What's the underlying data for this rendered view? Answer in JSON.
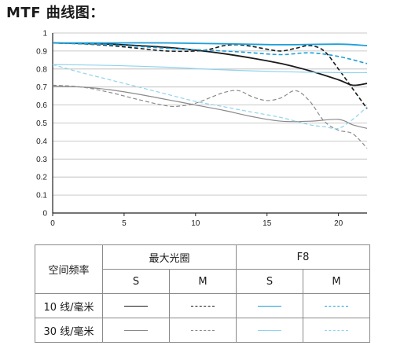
{
  "title": "MTF 曲线图：",
  "colors": {
    "max_aperture": "#1a1a1a",
    "max_aperture_30": "#8a8a8a",
    "f8": "#1e9fd8",
    "f8_30": "#8fd3ee",
    "axis": "#222222",
    "grid": "#b8b8b8"
  },
  "chart_data": {
    "type": "line",
    "xlim": [
      0,
      22
    ],
    "ylim": [
      0,
      1
    ],
    "x_ticks": [
      "0",
      "5",
      "10",
      "15",
      "20"
    ],
    "x_tick_values": [
      0,
      5,
      10,
      15,
      20
    ],
    "y_ticks": [
      "0",
      "0.1",
      "0.2",
      "0.3",
      "0.4",
      "0.5",
      "0.6",
      "0.7",
      "0.8",
      "0.9",
      "1"
    ],
    "y_tick_values": [
      0,
      0.1,
      0.2,
      0.3,
      0.4,
      0.5,
      0.6,
      0.7,
      0.8,
      0.9,
      1
    ],
    "grid": true,
    "series": [
      {
        "key": "max_10_s",
        "color": "#1a1a1a",
        "dash": "solid",
        "width": 1.8,
        "x": [
          0,
          2,
          4,
          6,
          8,
          10,
          12,
          14,
          16,
          18,
          20,
          21,
          22
        ],
        "y": [
          0.945,
          0.942,
          0.938,
          0.93,
          0.92,
          0.905,
          0.885,
          0.86,
          0.83,
          0.79,
          0.74,
          0.71,
          0.72
        ]
      },
      {
        "key": "max_10_m",
        "color": "#1a1a1a",
        "dash": "dashed",
        "width": 1.6,
        "x": [
          0,
          2,
          4,
          6,
          8,
          10,
          11,
          12,
          13,
          14,
          15,
          16,
          17,
          18,
          19,
          20,
          21,
          22
        ],
        "y": [
          0.945,
          0.94,
          0.93,
          0.915,
          0.9,
          0.9,
          0.91,
          0.93,
          0.935,
          0.925,
          0.91,
          0.9,
          0.915,
          0.93,
          0.9,
          0.8,
          0.69,
          0.58
        ]
      },
      {
        "key": "f8_10_s",
        "color": "#1e9fd8",
        "dash": "solid",
        "width": 1.8,
        "x": [
          0,
          4,
          8,
          12,
          16,
          20,
          22
        ],
        "y": [
          0.945,
          0.945,
          0.945,
          0.94,
          0.935,
          0.938,
          0.93
        ]
      },
      {
        "key": "f8_10_m",
        "color": "#1e9fd8",
        "dash": "dashed",
        "width": 1.6,
        "x": [
          0,
          4,
          8,
          12,
          14,
          16,
          18,
          20,
          22
        ],
        "y": [
          0.945,
          0.935,
          0.915,
          0.9,
          0.89,
          0.88,
          0.89,
          0.87,
          0.83
        ]
      },
      {
        "key": "max_30_s",
        "color": "#8a8a8a",
        "dash": "solid",
        "width": 1.2,
        "x": [
          0,
          2,
          4,
          6,
          8,
          10,
          12,
          14,
          16,
          18,
          20,
          21,
          22
        ],
        "y": [
          0.705,
          0.7,
          0.685,
          0.66,
          0.63,
          0.6,
          0.57,
          0.535,
          0.51,
          0.51,
          0.52,
          0.49,
          0.47
        ]
      },
      {
        "key": "max_30_m",
        "color": "#8a8a8a",
        "dash": "dashed",
        "width": 1.2,
        "x": [
          0,
          2,
          4,
          6,
          8,
          9,
          10,
          11,
          12,
          13,
          14,
          15,
          16,
          17,
          18,
          19,
          20,
          21,
          22
        ],
        "y": [
          0.71,
          0.7,
          0.67,
          0.63,
          0.595,
          0.595,
          0.61,
          0.64,
          0.67,
          0.68,
          0.645,
          0.625,
          0.64,
          0.68,
          0.62,
          0.51,
          0.46,
          0.44,
          0.36
        ]
      },
      {
        "key": "f8_30_s",
        "color": "#8fd3ee",
        "dash": "solid",
        "width": 1.2,
        "x": [
          0,
          4,
          8,
          12,
          16,
          20,
          22
        ],
        "y": [
          0.825,
          0.82,
          0.81,
          0.795,
          0.785,
          0.78,
          0.78
        ]
      },
      {
        "key": "f8_30_m",
        "color": "#8fd3ee",
        "dash": "dashed",
        "width": 1.2,
        "x": [
          0,
          2,
          4,
          6,
          8,
          10,
          12,
          14,
          16,
          18,
          19,
          20,
          21,
          22
        ],
        "y": [
          0.825,
          0.78,
          0.74,
          0.7,
          0.66,
          0.62,
          0.59,
          0.56,
          0.53,
          0.49,
          0.48,
          0.47,
          0.52,
          0.59
        ]
      }
    ]
  },
  "legend_table": {
    "row_header": "空间频率",
    "group_max": "最大光圈",
    "group_f8": "F8",
    "sub_s1": "S",
    "sub_m1": "M",
    "sub_s2": "S",
    "sub_m2": "M",
    "row_10": "10 线/毫米",
    "row_30": "30 线/毫米"
  }
}
